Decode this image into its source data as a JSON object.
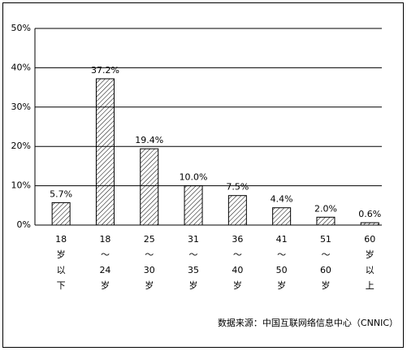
{
  "chart_data": {
    "type": "bar",
    "categories": [
      [
        "18",
        "岁",
        "以",
        "下"
      ],
      [
        "18",
        "～",
        "24",
        "岁"
      ],
      [
        "25",
        "～",
        "30",
        "岁"
      ],
      [
        "31",
        "～",
        "35",
        "岁"
      ],
      [
        "36",
        "～",
        "40",
        "岁"
      ],
      [
        "41",
        "～",
        "50",
        "岁"
      ],
      [
        "51",
        "～",
        "60",
        "岁"
      ],
      [
        "60",
        "岁",
        "以",
        "上"
      ]
    ],
    "values": [
      5.7,
      37.2,
      19.4,
      10.0,
      7.5,
      4.4,
      2.0,
      0.6
    ],
    "value_labels": [
      "5.7%",
      "37.2%",
      "19.4%",
      "10.0%",
      "7.5%",
      "4.4%",
      "2.0%",
      "0.6%"
    ],
    "color": "#000000",
    "ylim": [
      0,
      50
    ],
    "yticks": [
      {
        "value": 0,
        "label": "0%"
      },
      {
        "value": 10,
        "label": "10%"
      },
      {
        "value": 20,
        "label": "20%"
      },
      {
        "value": 30,
        "label": "30%"
      },
      {
        "value": 40,
        "label": "40%"
      },
      {
        "value": 50,
        "label": "50%"
      }
    ],
    "grid": true,
    "source": "数据来源：中国互联网络信息中心（CNNIC）"
  }
}
